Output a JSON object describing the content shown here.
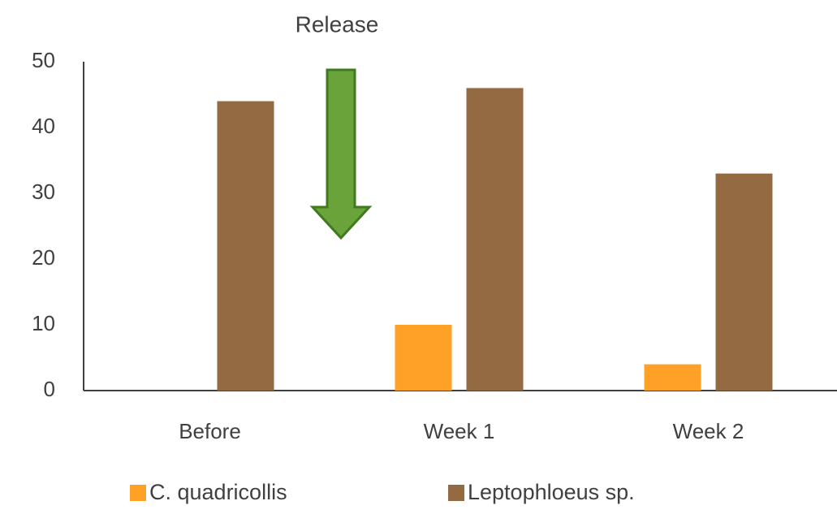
{
  "chart_data": {
    "type": "bar",
    "annotation": "Release",
    "categories": [
      "Before",
      "Week 1",
      "Week 2"
    ],
    "series": [
      {
        "name": "C. quadricollis",
        "color": "#ffa126",
        "values": [
          0,
          10,
          4
        ]
      },
      {
        "name": "Leptophloeus sp.",
        "color": "#946a43",
        "values": [
          44,
          46,
          33
        ]
      }
    ],
    "ylim": [
      0,
      50
    ],
    "yticks": [
      0,
      10,
      20,
      30,
      40,
      50
    ],
    "grid": false
  }
}
